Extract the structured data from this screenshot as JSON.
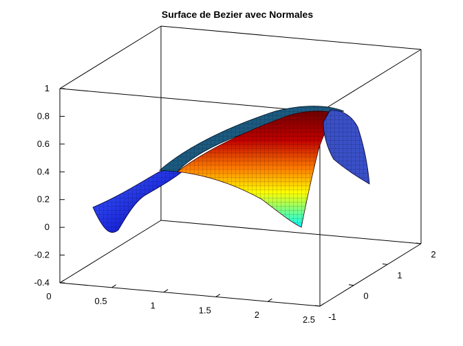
{
  "chart_data": {
    "type": "surface",
    "title": "Surface de Bezier avec Normales",
    "xlabel": "",
    "ylabel": "",
    "zlabel": "",
    "xlim": [
      0,
      2.5
    ],
    "ylim": [
      -1,
      2
    ],
    "zlim": [
      -0.4,
      1
    ],
    "x_ticks": [
      "0",
      "0.5",
      "1",
      "1.5",
      "2",
      "2.5"
    ],
    "y_ticks": [
      "-1",
      "0",
      "1",
      "2"
    ],
    "z_ticks": [
      "-0.4",
      "-0.2",
      "0",
      "0.2",
      "0.4",
      "0.6",
      "0.8",
      "1"
    ],
    "colormap": "jet",
    "box": true,
    "grid": false,
    "approx_surface_z": {
      "x": [
        0.5,
        1.0,
        1.5,
        2.0,
        2.5
      ],
      "y_front": [
        0.05,
        0.35,
        0.65,
        0.8,
        0.0
      ],
      "y_back": [
        0.45,
        0.6,
        0.75,
        0.85,
        0.3
      ],
      "max": 0.85
    }
  }
}
